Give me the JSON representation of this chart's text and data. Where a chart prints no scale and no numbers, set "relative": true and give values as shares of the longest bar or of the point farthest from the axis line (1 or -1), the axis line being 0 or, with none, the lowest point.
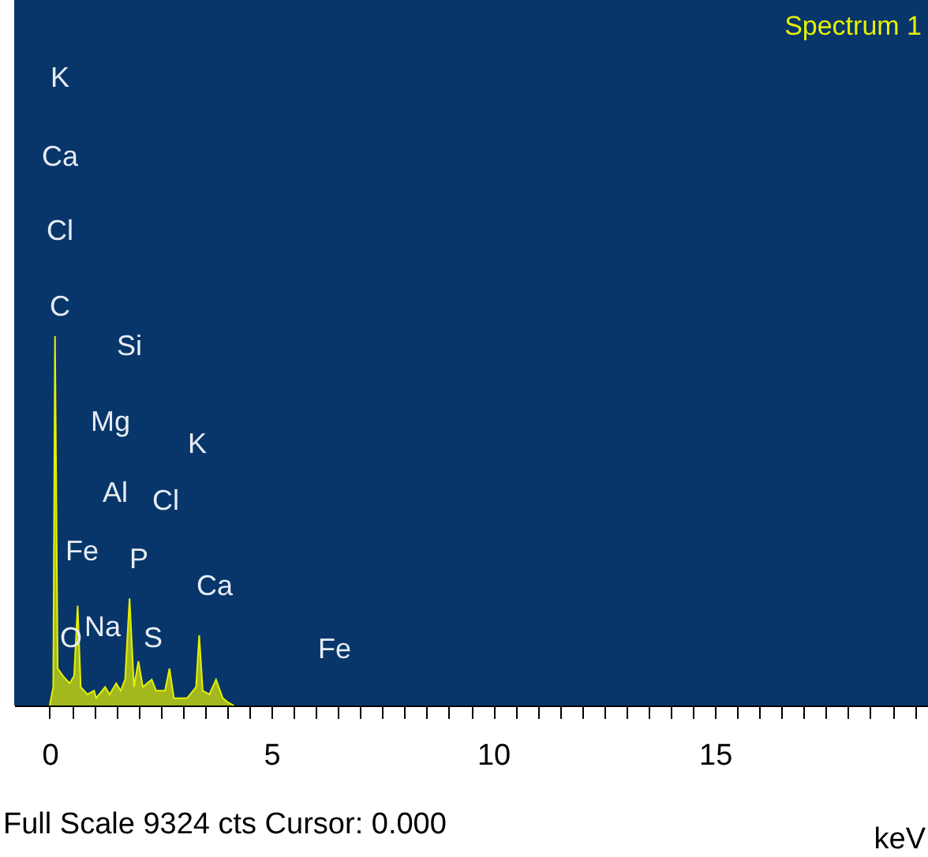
{
  "chart_data": {
    "type": "area",
    "title": "Spectrum 1",
    "xlabel": "keV",
    "relative": true,
    "color": "#e6f000",
    "x": [
      0,
      0.08,
      0.12,
      0.18,
      0.3,
      0.45,
      0.55,
      0.63,
      0.7,
      0.85,
      1.0,
      1.05,
      1.25,
      1.35,
      1.5,
      1.6,
      1.7,
      1.8,
      1.9,
      2.0,
      2.1,
      2.3,
      2.4,
      2.6,
      2.7,
      2.8,
      3.0,
      3.1,
      3.3,
      3.37,
      3.45,
      3.6,
      3.75,
      3.9,
      4.0,
      4.15
    ],
    "values": [
      0,
      0.05,
      1.0,
      0.1,
      0.08,
      0.06,
      0.08,
      0.27,
      0.05,
      0.03,
      0.04,
      0.02,
      0.05,
      0.03,
      0.06,
      0.04,
      0.07,
      0.29,
      0.05,
      0.12,
      0.05,
      0.07,
      0.04,
      0.04,
      0.1,
      0.02,
      0.02,
      0.02,
      0.05,
      0.19,
      0.04,
      0.03,
      0.07,
      0.02,
      0.01,
      0
    ],
    "xlim": [
      -0.8,
      19.8
    ],
    "xticks": [
      0,
      {
        "value": 0.5,
        "label": null
      },
      {
        "value": 1,
        "label": null
      },
      {
        "value": 1.5,
        "label": null
      },
      {
        "value": 2,
        "label": null
      },
      {
        "value": 2.5,
        "label": null
      },
      {
        "value": 3,
        "label": null
      },
      {
        "value": 3.5,
        "label": null
      },
      {
        "value": 4,
        "label": null
      },
      {
        "value": 4.5,
        "label": null
      },
      5,
      {
        "value": 5.5,
        "label": null
      },
      {
        "value": 6,
        "label": null
      },
      {
        "value": 6.5,
        "label": null
      },
      {
        "value": 7,
        "label": null
      },
      {
        "value": 7.5,
        "label": null
      },
      {
        "value": 8,
        "label": null
      },
      {
        "value": 8.5,
        "label": null
      },
      {
        "value": 9,
        "label": null
      },
      {
        "value": 9.5,
        "label": null
      },
      10,
      {
        "value": 10.5,
        "label": null
      },
      {
        "value": 11,
        "label": null
      },
      {
        "value": 11.5,
        "label": null
      },
      {
        "value": 12,
        "label": null
      },
      {
        "value": 12.5,
        "label": null
      },
      {
        "value": 13,
        "label": null
      },
      {
        "value": 13.5,
        "label": null
      },
      {
        "value": 14,
        "label": null
      },
      {
        "value": 14.5,
        "label": null
      },
      15,
      {
        "value": 15.5,
        "label": null
      },
      {
        "value": 16,
        "label": null
      },
      {
        "value": 16.5,
        "label": null
      },
      {
        "value": 17,
        "label": null
      },
      {
        "value": 17.5,
        "label": null
      },
      {
        "value": 18,
        "label": null
      },
      {
        "value": 18.5,
        "label": null
      },
      {
        "value": 19,
        "label": null
      },
      {
        "value": 19.5,
        "label": null
      }
    ],
    "annotations": [
      "K",
      "Ca",
      "Cl",
      "C",
      "Si",
      "Mg",
      "K",
      "Al",
      "Cl",
      "Fe",
      "P",
      "Ca",
      "Na",
      "O",
      "S",
      "Fe",
      "Full Scale 9324 cts Cursor: 0.000"
    ]
  }
}
